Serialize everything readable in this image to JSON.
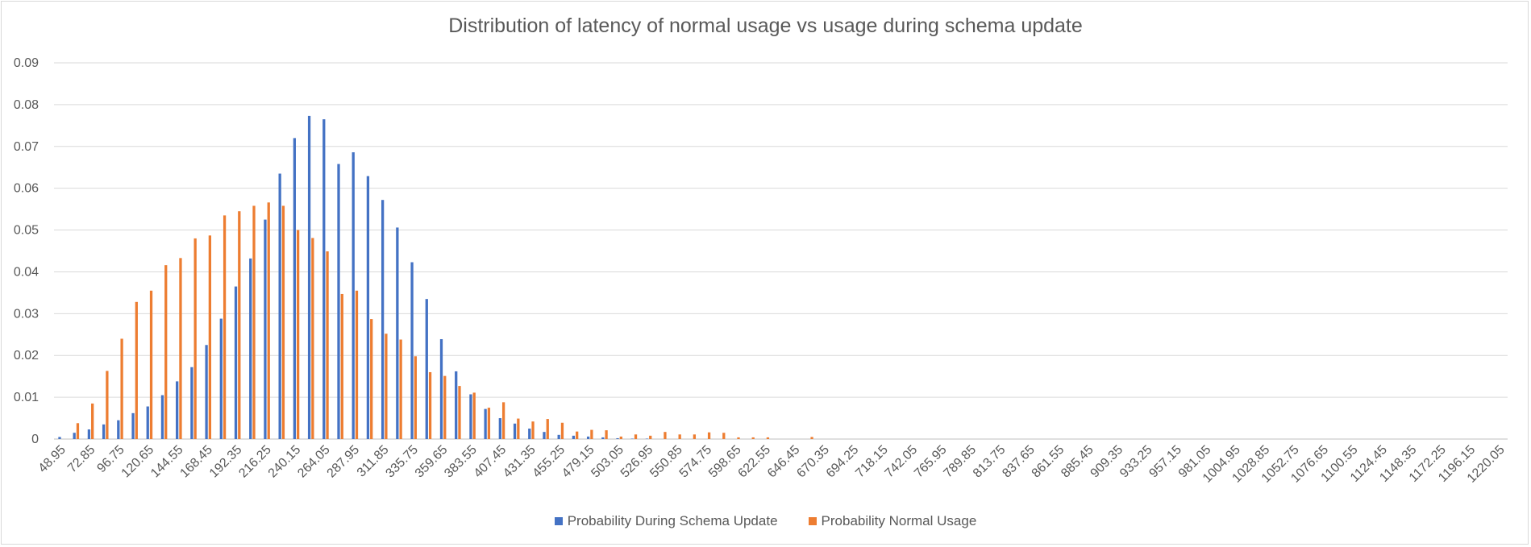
{
  "chart_data": {
    "type": "bar",
    "title": "Distribution of latency of normal usage vs usage during schema update",
    "xlabel": "",
    "ylabel": "",
    "ylim": [
      0,
      0.09
    ],
    "y_ticks": [
      "0",
      "0.01",
      "0.02",
      "0.03",
      "0.04",
      "0.05",
      "0.06",
      "0.07",
      "0.08",
      "0.09"
    ],
    "grid": true,
    "legend_position": "bottom",
    "x_tick_labels": [
      "48.95",
      "72.85",
      "96.75",
      "120.65",
      "144.55",
      "168.45",
      "192.35",
      "216.25",
      "240.15",
      "264.05",
      "287.95",
      "311.85",
      "335.75",
      "359.65",
      "383.55",
      "407.45",
      "431.35",
      "455.25",
      "479.15",
      "503.05",
      "526.95",
      "550.85",
      "574.75",
      "598.65",
      "622.55",
      "646.45",
      "670.35",
      "694.25",
      "718.15",
      "742.05",
      "765.95",
      "789.85",
      "813.75",
      "837.65",
      "861.55",
      "885.45",
      "909.35",
      "933.25",
      "957.15",
      "981.05",
      "1004.95",
      "1028.85",
      "1052.75",
      "1076.65",
      "1100.55",
      "1124.45",
      "1148.35",
      "1172.25",
      "1196.15",
      "1220.05"
    ],
    "categories_count": 99,
    "series": [
      {
        "name": "Probability During Schema Update",
        "color": "#4472c4",
        "values": [
          0.0005,
          0.0015,
          0.0023,
          0.0035,
          0.0045,
          0.0062,
          0.0078,
          0.0105,
          0.0138,
          0.0172,
          0.0225,
          0.0288,
          0.0365,
          0.0432,
          0.0525,
          0.0635,
          0.072,
          0.0773,
          0.0765,
          0.0658,
          0.0686,
          0.0629,
          0.0572,
          0.0506,
          0.0423,
          0.0335,
          0.0239,
          0.0162,
          0.0107,
          0.0072,
          0.005,
          0.0037,
          0.0025,
          0.0017,
          0.001,
          0.0008,
          0.0006,
          0.0004,
          0.0002,
          0.0001,
          0.0001,
          0,
          0,
          0,
          0,
          0,
          0,
          0,
          0,
          0,
          0,
          0,
          0,
          0,
          0,
          0,
          0,
          0,
          0,
          0,
          0,
          0,
          0,
          0,
          0,
          0,
          0,
          0,
          0,
          0,
          0,
          0,
          0,
          0,
          0,
          0,
          0,
          0,
          0,
          0,
          0,
          0,
          0,
          0,
          0,
          0,
          0,
          0,
          0,
          0,
          0,
          0,
          0,
          0,
          0,
          0,
          0,
          0,
          0
        ]
      },
      {
        "name": "Probability Normal Usage",
        "color": "#ed7d31",
        "values": [
          0,
          0.0038,
          0.0085,
          0.0163,
          0.024,
          0.0328,
          0.0355,
          0.0416,
          0.0433,
          0.048,
          0.0487,
          0.0535,
          0.0545,
          0.0558,
          0.0566,
          0.0558,
          0.05,
          0.0481,
          0.0449,
          0.0347,
          0.0355,
          0.0287,
          0.0252,
          0.0238,
          0.0198,
          0.016,
          0.0151,
          0.0127,
          0.0111,
          0.0075,
          0.0088,
          0.0049,
          0.0042,
          0.0048,
          0.0039,
          0.0018,
          0.0022,
          0.0021,
          0.0006,
          0.0011,
          0.0008,
          0.0017,
          0.0011,
          0.0011,
          0.0016,
          0.0015,
          0.0004,
          0.0004,
          0.0004,
          0,
          0,
          0.0005,
          0,
          0,
          0,
          0,
          0,
          0,
          0,
          0,
          0,
          0,
          0,
          0,
          0,
          0,
          0,
          0,
          0,
          0,
          0,
          0,
          0,
          0,
          0,
          0,
          0,
          0,
          0,
          0,
          0,
          0,
          0,
          0,
          0,
          0,
          0,
          0,
          0,
          0,
          0,
          0,
          0,
          0,
          0,
          0,
          0,
          0,
          0
        ]
      }
    ]
  }
}
